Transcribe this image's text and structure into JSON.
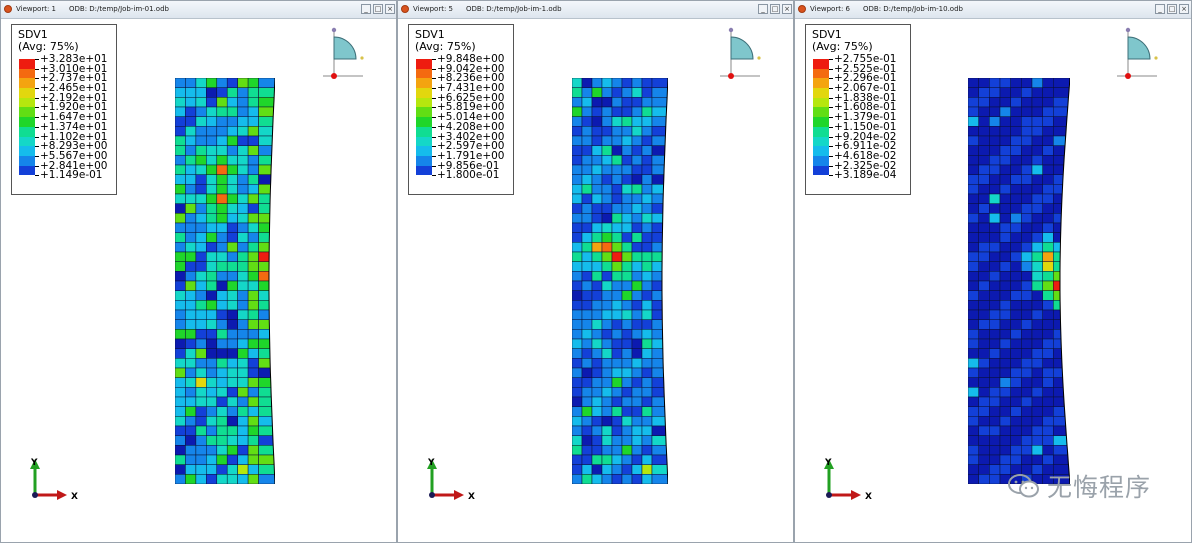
{
  "viewports": [
    {
      "viewport_title": "Viewport: 1",
      "odb_title": "ODB: D:/temp/Job-im-01.odb",
      "legend_title": "SDV1",
      "legend_subtitle": "(Avg: 75%)",
      "legend_values": [
        "+3.283e+01",
        "+3.010e+01",
        "+2.737e+01",
        "+2.465e+01",
        "+2.192e+01",
        "+1.920e+01",
        "+1.647e+01",
        "+1.374e+01",
        "+1.102e+01",
        "+8.293e+00",
        "+5.567e+00",
        "+2.841e+00",
        "+1.149e-01"
      ],
      "triad_y": "Y",
      "triad_x": "X",
      "view_y": "Y",
      "view_x": "X"
    },
    {
      "viewport_title": "Viewport: 5",
      "odb_title": "ODB: D:/temp/Job-im-1.odb",
      "legend_title": "SDV1",
      "legend_subtitle": "(Avg: 75%)",
      "legend_values": [
        "+9.848e+00",
        "+9.042e+00",
        "+8.236e+00",
        "+7.431e+00",
        "+6.625e+00",
        "+5.819e+00",
        "+5.014e+00",
        "+4.208e+00",
        "+3.402e+00",
        "+2.597e+00",
        "+1.791e+00",
        "+9.856e-01",
        "+1.800e-01"
      ],
      "triad_y": "Y",
      "triad_x": "X",
      "view_y": "Y",
      "view_x": "X"
    },
    {
      "viewport_title": "Viewport: 6",
      "odb_title": "ODB: D:/temp/Job-im-10.odb",
      "legend_title": "SDV1",
      "legend_subtitle": "(Avg: 75%)",
      "legend_values": [
        "+2.755e-01",
        "+2.525e-01",
        "+2.296e-01",
        "+2.067e-01",
        "+1.838e-01",
        "+1.608e-01",
        "+1.379e-01",
        "+1.150e-01",
        "+9.204e-02",
        "+6.911e-02",
        "+4.618e-02",
        "+2.325e-02",
        "+3.189e-04"
      ],
      "triad_y": "Y",
      "triad_x": "X",
      "view_y": "Y",
      "view_x": "X"
    }
  ],
  "legend_colors": [
    "#ee1c10",
    "#f46a10",
    "#f4a410",
    "#e2d70e",
    "#b6e70e",
    "#62de14",
    "#1fd62a",
    "#10dd92",
    "#14d7c8",
    "#15bcec",
    "#1585ea",
    "#1340d8",
    "#0c1ab0"
  ],
  "window_buttons": [
    "_",
    "□",
    "×"
  ],
  "watermark": {
    "text": "无悔程序",
    "icon": "wechat-icon"
  },
  "colors": {
    "mesh_background": "#1c43b8",
    "mesh_line": "#0b1030",
    "view_cube": "#7fc6cc"
  }
}
